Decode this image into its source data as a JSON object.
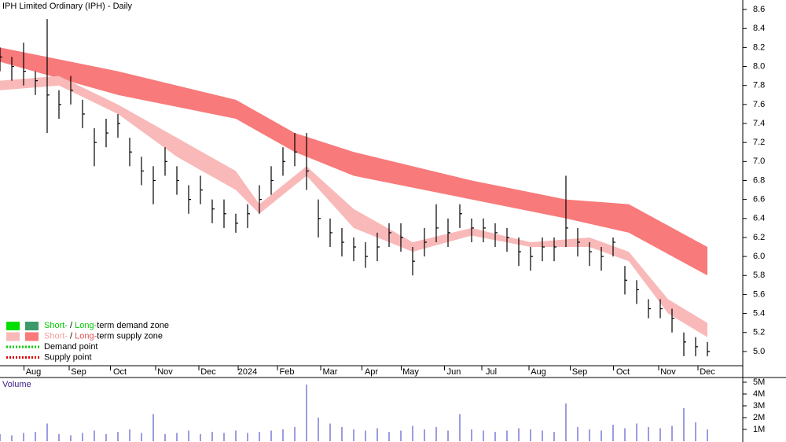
{
  "chart_data": {
    "type": "ohlc",
    "title": "IPH Limited Ordinary (IPH) - Daily",
    "x": [
      0,
      6,
      12,
      18,
      24,
      30,
      36,
      42,
      48,
      54,
      60,
      66,
      72,
      78,
      84,
      90,
      96,
      102,
      108,
      114,
      120,
      126,
      132,
      138,
      144,
      150,
      156,
      162,
      168,
      174,
      180,
      186,
      192,
      198,
      204,
      210,
      216,
      222,
      228,
      234,
      240,
      246,
      252,
      258,
      264,
      270,
      276,
      282,
      288,
      294,
      300,
      306,
      312,
      318,
      324,
      330,
      336,
      342,
      348,
      354,
      360
    ],
    "close": [
      8.1,
      8.0,
      7.95,
      7.85,
      7.7,
      7.6,
      7.75,
      7.5,
      7.2,
      7.3,
      7.4,
      7.1,
      6.9,
      6.8,
      7.0,
      6.8,
      6.6,
      6.7,
      6.5,
      6.45,
      6.35,
      6.45,
      6.6,
      6.8,
      7.0,
      7.1,
      6.9,
      6.4,
      6.25,
      6.15,
      6.1,
      6.0,
      6.1,
      6.25,
      6.2,
      5.95,
      6.15,
      6.3,
      6.25,
      6.45,
      6.3,
      6.3,
      6.25,
      6.2,
      6.05,
      6.0,
      6.1,
      6.1,
      6.3,
      6.15,
      6.05,
      6.0,
      6.15,
      5.75,
      5.65,
      5.45,
      5.45,
      5.35,
      5.1,
      5.05,
      5.0
    ],
    "high": [
      8.2,
      8.1,
      8.25,
      7.95,
      8.5,
      7.75,
      7.9,
      7.65,
      7.35,
      7.45,
      7.5,
      7.25,
      7.05,
      6.95,
      7.15,
      6.95,
      6.75,
      6.85,
      6.6,
      6.6,
      6.45,
      6.55,
      6.75,
      6.95,
      7.15,
      7.3,
      7.3,
      6.6,
      6.4,
      6.3,
      6.2,
      6.15,
      6.25,
      6.35,
      6.35,
      6.1,
      6.3,
      6.55,
      6.4,
      6.55,
      6.4,
      6.4,
      6.35,
      6.3,
      6.2,
      6.1,
      6.2,
      6.2,
      6.85,
      6.3,
      6.15,
      6.1,
      6.2,
      5.9,
      5.75,
      5.55,
      5.55,
      5.45,
      5.2,
      5.15,
      5.1
    ],
    "low": [
      7.95,
      7.85,
      7.8,
      7.7,
      7.3,
      7.45,
      7.6,
      7.35,
      6.95,
      7.15,
      7.25,
      6.95,
      6.75,
      6.55,
      6.85,
      6.65,
      6.45,
      6.55,
      6.35,
      6.3,
      6.25,
      6.3,
      6.45,
      6.65,
      6.85,
      6.95,
      6.7,
      6.2,
      6.1,
      6.0,
      5.95,
      5.88,
      5.95,
      6.1,
      6.05,
      5.8,
      6.0,
      6.15,
      6.1,
      6.3,
      6.15,
      6.15,
      6.1,
      6.05,
      5.9,
      5.85,
      5.95,
      5.95,
      6.1,
      6.0,
      5.9,
      5.85,
      6.0,
      5.6,
      5.5,
      5.35,
      5.35,
      5.2,
      4.95,
      4.95,
      4.95
    ],
    "volume": [
      600000,
      500000,
      700000,
      800000,
      1500000,
      600000,
      500000,
      700000,
      900000,
      600000,
      800000,
      1000000,
      700000,
      2300000,
      600000,
      700000,
      900000,
      600000,
      800000,
      700000,
      900000,
      700000,
      800000,
      900000,
      1000000,
      1200000,
      4800000,
      2000000,
      1500000,
      1200000,
      1000000,
      900000,
      1100000,
      800000,
      900000,
      1300000,
      1000000,
      1200000,
      900000,
      2300000,
      1000000,
      900000,
      800000,
      900000,
      1100000,
      1000000,
      900000,
      800000,
      3200000,
      1200000,
      1000000,
      900000,
      1400000,
      1100000,
      1500000,
      1200000,
      1100000,
      1300000,
      2800000,
      1600000,
      1000000
    ],
    "bands": [
      {
        "color": "#f87a7a",
        "x": [
          0,
          60,
          120,
          150,
          180,
          240,
          288,
          320,
          360
        ],
        "upper": [
          8.2,
          7.95,
          7.65,
          7.3,
          7.1,
          6.8,
          6.6,
          6.55,
          6.1
        ],
        "lower": [
          8.05,
          7.7,
          7.45,
          7.1,
          6.85,
          6.6,
          6.4,
          6.25,
          5.8
        ]
      },
      {
        "color": "#f9b9b9",
        "x": [
          0,
          30,
          60,
          90,
          120,
          132,
          156,
          180,
          210,
          240,
          270,
          300,
          320,
          340,
          360
        ],
        "upper": [
          7.85,
          7.9,
          7.6,
          7.25,
          6.9,
          6.55,
          6.95,
          6.5,
          6.15,
          6.3,
          6.15,
          6.2,
          6.05,
          5.55,
          5.3
        ],
        "lower": [
          7.75,
          7.8,
          7.5,
          7.05,
          6.7,
          6.45,
          6.85,
          6.3,
          6.05,
          6.22,
          6.1,
          6.1,
          5.95,
          5.4,
          5.15
        ]
      }
    ],
    "bar_color": "#000000",
    "volume_color": "#7b7bd6",
    "xlim": [
      0,
      378
    ],
    "ylim": [
      4.85,
      8.7
    ],
    "yticks": [
      {
        "value": 5,
        "label": "5.0"
      },
      5.2,
      5.4,
      5.6,
      5.8,
      {
        "value": 6,
        "label": "6.0"
      },
      6.2,
      6.4,
      6.6,
      6.8,
      {
        "value": 7,
        "label": "7.0"
      },
      7.2,
      7.4,
      7.6,
      7.8,
      {
        "value": 8,
        "label": "8.0"
      },
      8.2,
      8.4,
      8.6
    ],
    "xticks": [
      {
        "value": 17,
        "label": "Aug"
      },
      {
        "value": 40,
        "label": "Sep"
      },
      {
        "value": 61,
        "label": "Oct"
      },
      {
        "value": 84,
        "label": "Nov"
      },
      {
        "value": 106,
        "label": "Dec"
      },
      {
        "value": 126,
        "label": "2024"
      },
      {
        "value": 146,
        "label": "Feb"
      },
      {
        "value": 168,
        "label": "Mar"
      },
      {
        "value": 189,
        "label": "Apr"
      },
      {
        "value": 209,
        "label": "May"
      },
      {
        "value": 231,
        "label": "Jun"
      },
      {
        "value": 250,
        "label": "Jul"
      },
      {
        "value": 274,
        "label": "Aug"
      },
      {
        "value": 295,
        "label": "Sep"
      },
      {
        "value": 317,
        "label": "Oct"
      },
      {
        "value": 340,
        "label": "Nov"
      },
      {
        "value": 360,
        "label": "Dec"
      }
    ],
    "volume_label": "Volume",
    "vlim": [
      0,
      5400000
    ],
    "vticks": [
      {
        "value": 1000000,
        "label": "1M"
      },
      {
        "value": 2000000,
        "label": "2M"
      },
      {
        "value": 3000000,
        "label": "3M"
      },
      {
        "value": 4000000,
        "label": "4M"
      },
      {
        "value": 5000000,
        "label": "5M"
      }
    ],
    "legend": [
      {
        "swatches": [
          "#00e000",
          "#3c9a6a"
        ],
        "parts": [
          {
            "text": "Short-",
            "color": "#00cc00"
          },
          {
            "text": " / "
          },
          {
            "text": "Long-",
            "color": "#00cc00"
          },
          {
            "text": "term demand zone"
          }
        ]
      },
      {
        "swatches": [
          "#f9b9b9",
          "#f87a7a"
        ],
        "parts": [
          {
            "text": "Short-",
            "color": "#f4a0a0"
          },
          {
            "text": " / "
          },
          {
            "text": "Long-",
            "color": "#e05050"
          },
          {
            "text": "term supply zone"
          }
        ]
      },
      {
        "dots": "#00cc00",
        "parts": [
          {
            "text": "Demand point"
          }
        ]
      },
      {
        "dots": "#dd0000",
        "parts": [
          {
            "text": "Supply point"
          }
        ]
      }
    ]
  }
}
